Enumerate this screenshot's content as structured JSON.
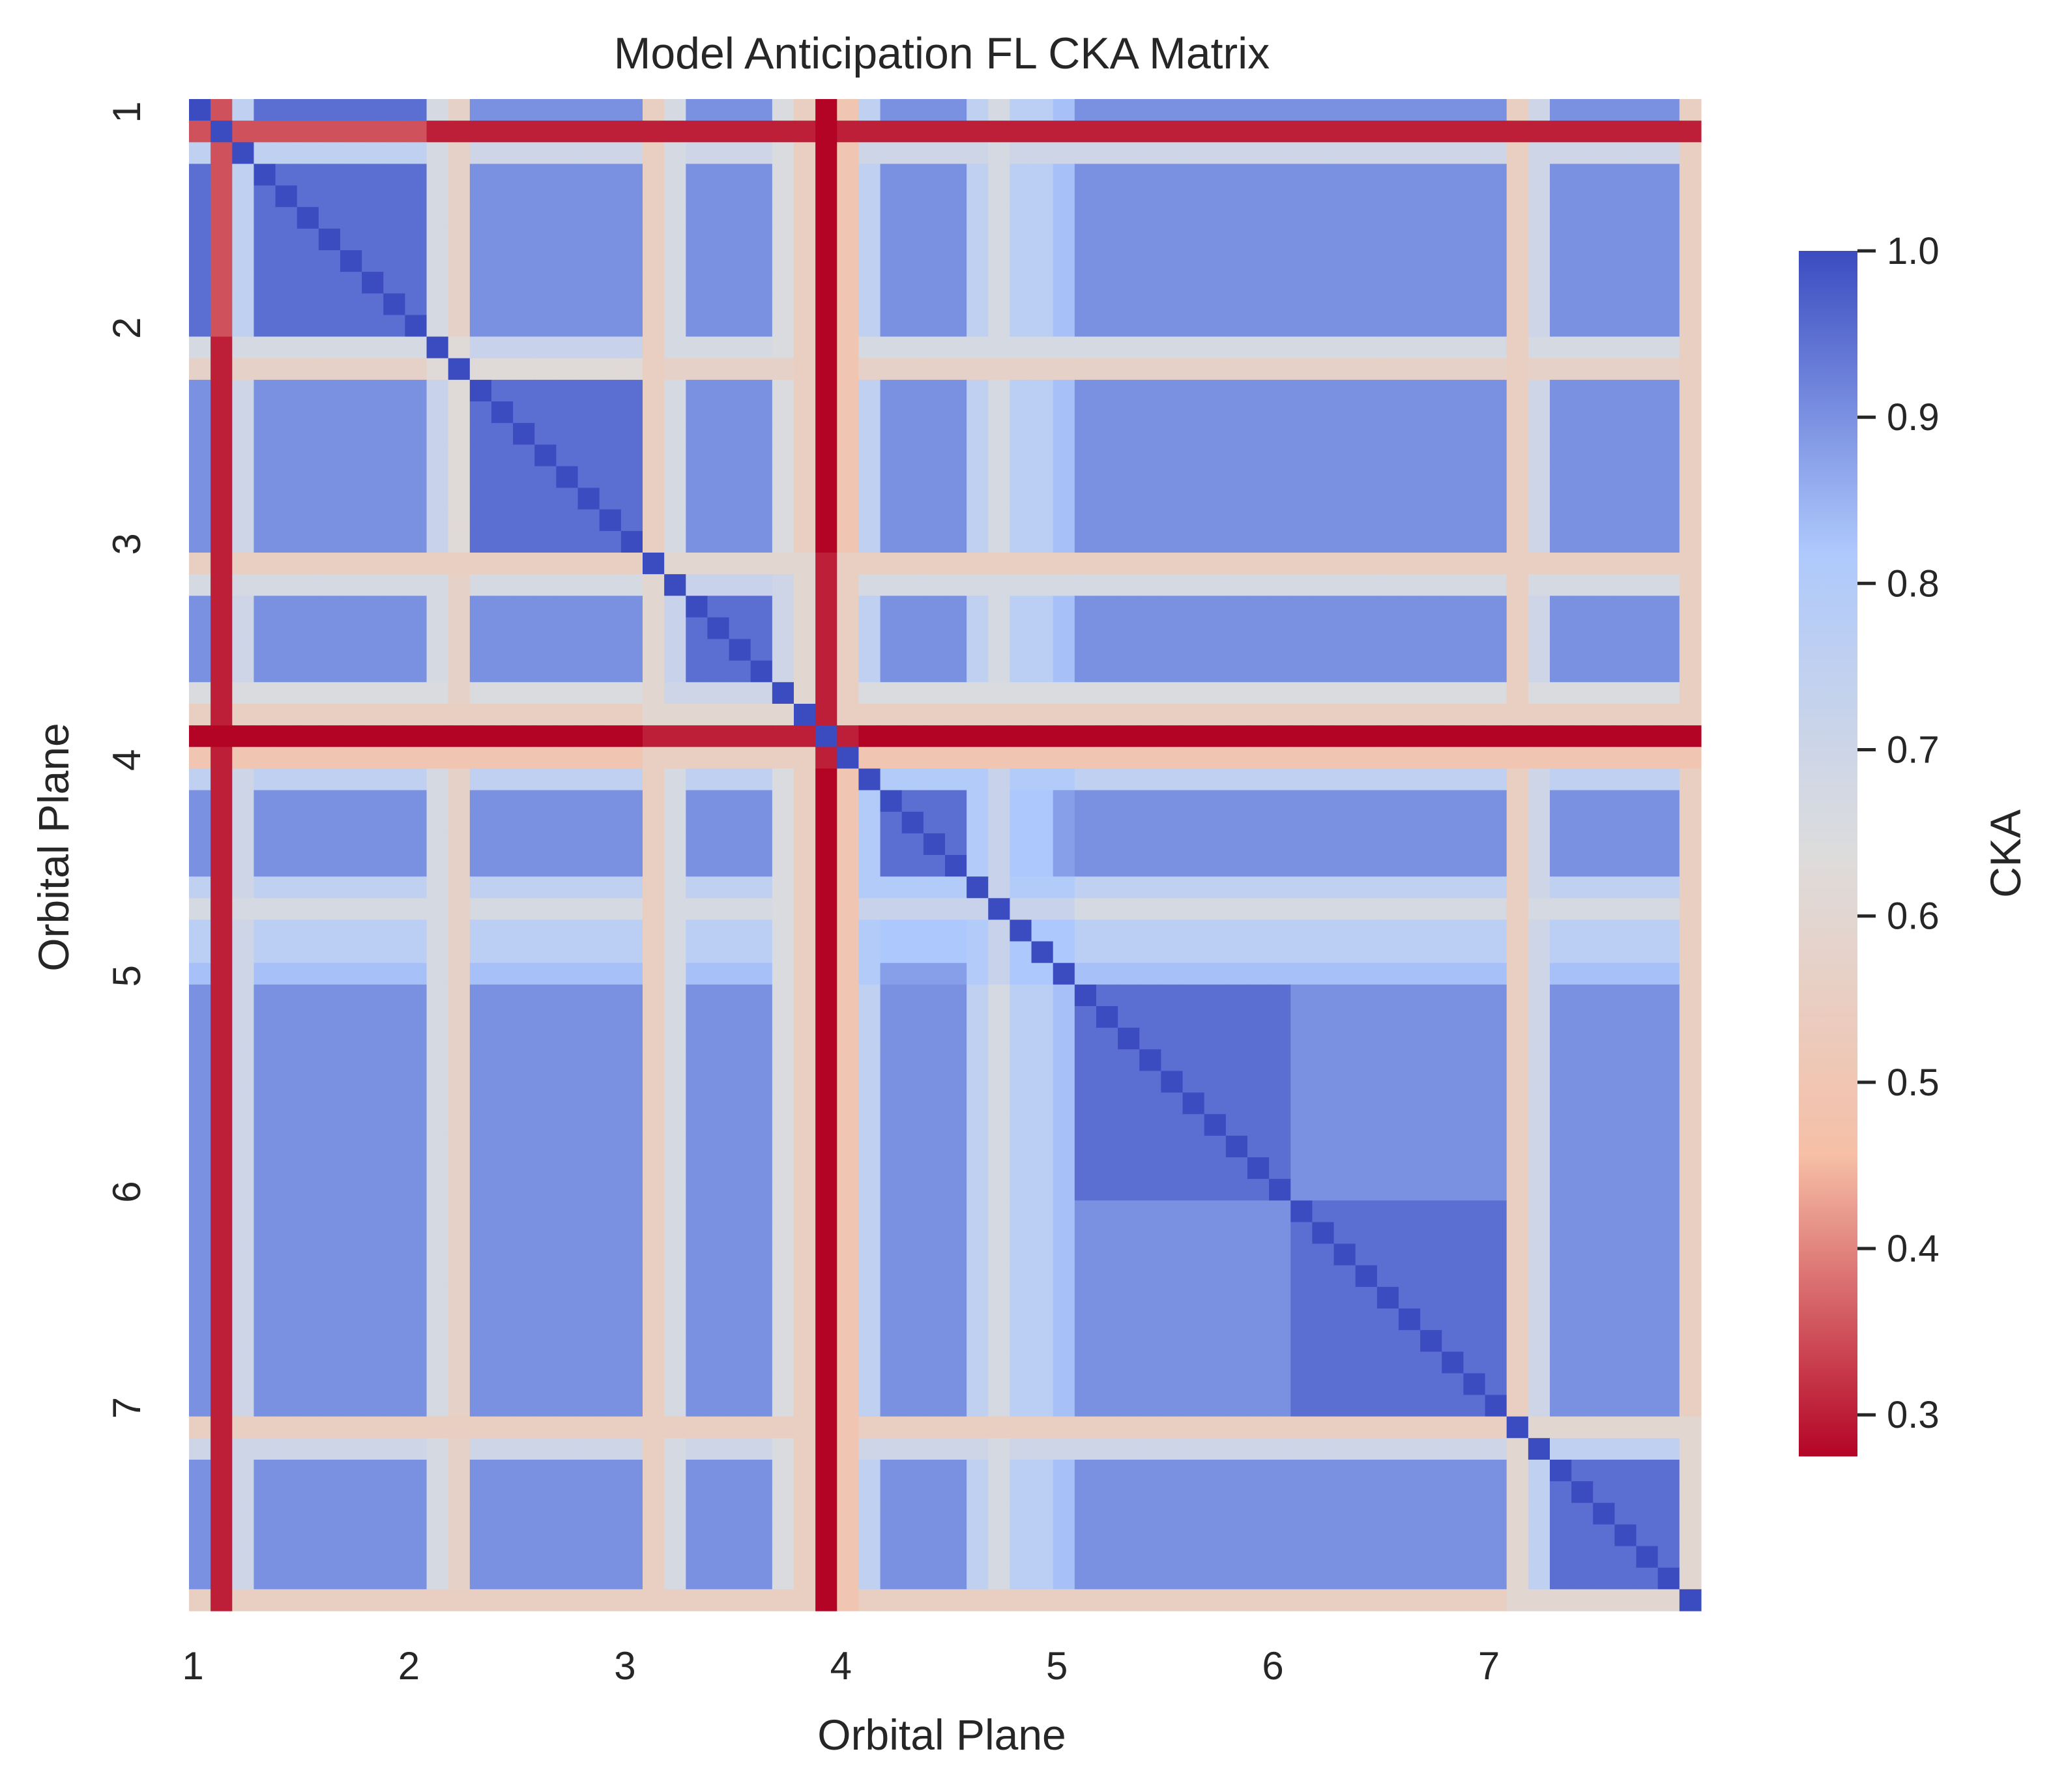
{
  "chart_data": {
    "type": "heatmap",
    "title": "Model Anticipation FL CKA Matrix",
    "xlabel": "Orbital Plane",
    "ylabel": "Orbital Plane",
    "n": 70,
    "tick_positions": [
      0,
      10,
      20,
      30,
      40,
      50,
      60
    ],
    "x_tick_labels": [
      "1",
      "2",
      "3",
      "4",
      "5",
      "6",
      "7"
    ],
    "y_tick_labels": [
      "1",
      "2",
      "3",
      "4",
      "5",
      "6",
      "7"
    ],
    "colorbar": {
      "label": "CKA",
      "vmin": 0.275,
      "vmax": 1.0,
      "ticks": [
        1.0,
        0.9,
        0.8,
        0.7,
        0.6,
        0.5,
        0.4,
        0.3
      ],
      "tick_labels": [
        "1.0",
        "0.9",
        "0.8",
        "0.7",
        "0.6",
        "0.5",
        "0.4",
        "0.3"
      ],
      "colormap": "coolwarm_r",
      "colors": [
        "#b40426",
        "#f6bfa6",
        "#dddcdc",
        "#aec9fc",
        "#3b4cc0"
      ]
    },
    "default_similarity": 0.95,
    "row_quality": [
      {
        "index": 1,
        "value": 0.35
      },
      {
        "index": 2,
        "value": 0.75
      },
      {
        "index": 11,
        "value": 0.72
      },
      {
        "index": 12,
        "value": 0.62
      },
      {
        "index": 21,
        "value": 0.6
      },
      {
        "index": 22,
        "value": 0.72
      },
      {
        "index": 27,
        "value": 0.7
      },
      {
        "index": 28,
        "value": 0.6
      },
      {
        "index": 29,
        "value": 0.3
      },
      {
        "index": 30,
        "value": 0.55
      },
      {
        "index": 31,
        "value": 0.8
      },
      {
        "index": 36,
        "value": 0.8
      },
      {
        "index": 37,
        "value": 0.72
      },
      {
        "index": 38,
        "value": 0.82
      },
      {
        "index": 39,
        "value": 0.82
      },
      {
        "index": 40,
        "value": 0.88
      },
      {
        "index": 61,
        "value": 0.6
      },
      {
        "index": 62,
        "value": 0.75
      },
      {
        "index": 69,
        "value": 0.6
      },
      {
        "index": 70,
        "value": 0.62
      }
    ],
    "block_boundaries": [
      1,
      11,
      21,
      31,
      41,
      51,
      61
    ],
    "cross_block_penalty": 0.05
  }
}
